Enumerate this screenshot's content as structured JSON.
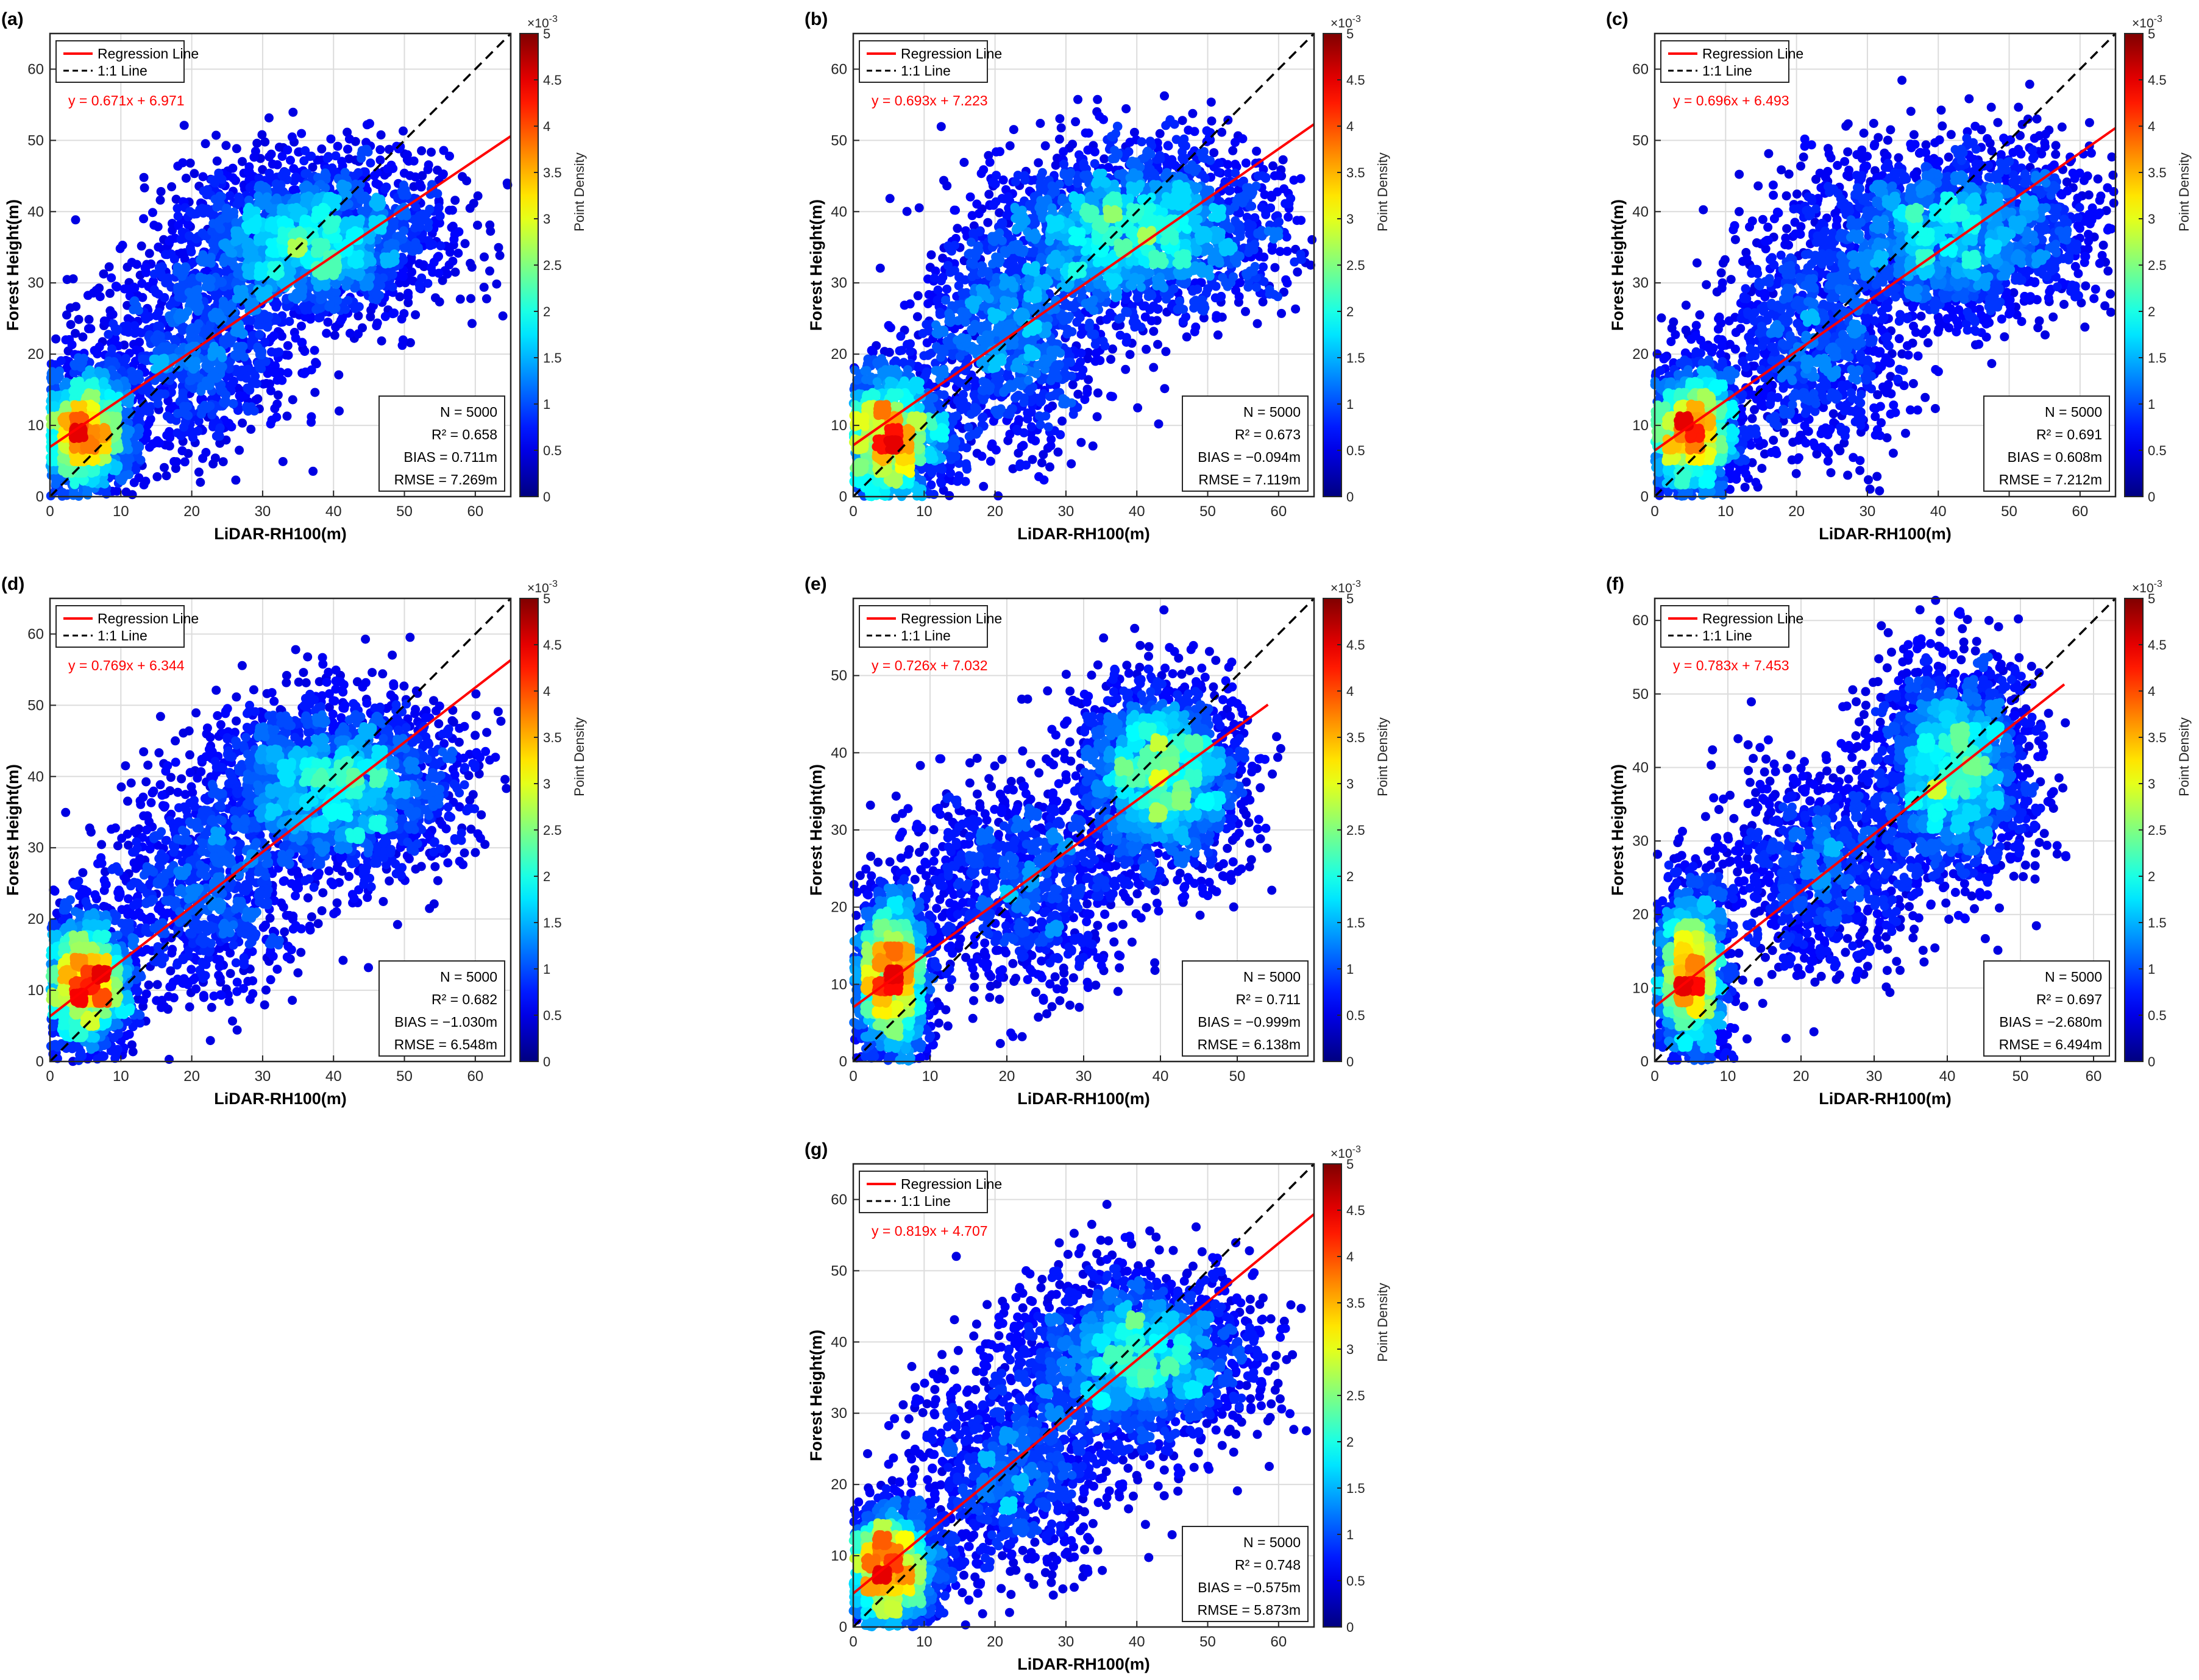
{
  "figure": {
    "shared": {
      "xlabel": "LiDAR-RH100(m)",
      "ylabel": "Forest Height(m)",
      "colorbar_label": "Point Density",
      "colorbar_exponent_base": "×10",
      "colorbar_exponent_power": "-3",
      "colorbar_range": [
        0,
        5
      ],
      "colorbar_ticks": [
        "0",
        "0.5",
        "1",
        "1.5",
        "2",
        "2.5",
        "3",
        "3.5",
        "4",
        "4.5",
        "5"
      ],
      "colormap": "jet",
      "legend": [
        "Regression Line",
        "1:1 Line"
      ],
      "regression_color": "#ff0000",
      "identity_color": "#000000",
      "grid": true
    }
  },
  "chart_data": [
    {
      "panel": "(a)",
      "type": "scatter",
      "colored_by": "point density",
      "xlabel": "LiDAR-RH100(m)",
      "ylabel": "Forest Height(m)",
      "xlim": [
        0,
        65
      ],
      "ylim": [
        0,
        65
      ],
      "xticks": [
        0,
        10,
        20,
        30,
        40,
        50,
        60
      ],
      "yticks": [
        0,
        10,
        20,
        30,
        40,
        50,
        60
      ],
      "regression": {
        "slope": 0.671,
        "intercept": 6.971,
        "x_end": 65,
        "label": "y = 0.671x + 6.971"
      },
      "identity_line": true,
      "clusters": [
        {
          "x": 5,
          "y": 9,
          "sx": 3.5,
          "sy": 4.5,
          "n": 1700
        },
        {
          "x": 37,
          "y": 36,
          "sx": 9,
          "sy": 5.5,
          "n": 2300
        },
        {
          "x": 20,
          "y": 20,
          "sx": 7,
          "sy": 7,
          "n": 1000
        }
      ],
      "stats": {
        "n": "N = 5000",
        "r2": "R² = 0.658",
        "bias": "BIAS = 0.711m",
        "rmse": "RMSE = 7.269m"
      }
    },
    {
      "panel": "(b)",
      "type": "scatter",
      "colored_by": "point density",
      "xlabel": "LiDAR-RH100(m)",
      "ylabel": "Forest Height(m)",
      "xlim": [
        0,
        65
      ],
      "ylim": [
        0,
        65
      ],
      "xticks": [
        0,
        10,
        20,
        30,
        40,
        50,
        60
      ],
      "yticks": [
        0,
        10,
        20,
        30,
        40,
        50,
        60
      ],
      "regression": {
        "slope": 0.693,
        "intercept": 7.223,
        "x_end": 65,
        "label": "y = 0.693x + 7.223"
      },
      "identity_line": true,
      "clusters": [
        {
          "x": 5,
          "y": 8,
          "sx": 4,
          "sy": 5,
          "n": 1600
        },
        {
          "x": 40,
          "y": 37,
          "sx": 10,
          "sy": 6,
          "n": 2300
        },
        {
          "x": 22,
          "y": 22,
          "sx": 7,
          "sy": 8,
          "n": 1100
        }
      ],
      "stats": {
        "n": "N = 5000",
        "r2": "R² = 0.673",
        "bias": "BIAS = −0.094m",
        "rmse": "RMSE = 7.119m"
      }
    },
    {
      "panel": "(c)",
      "type": "scatter",
      "colored_by": "point density",
      "xlabel": "LiDAR-RH100(m)",
      "ylabel": "Forest Height(m)",
      "xlim": [
        0,
        65
      ],
      "ylim": [
        0,
        65
      ],
      "xticks": [
        0,
        10,
        20,
        30,
        40,
        50,
        60
      ],
      "yticks": [
        0,
        10,
        20,
        30,
        40,
        50,
        60
      ],
      "regression": {
        "slope": 0.696,
        "intercept": 6.493,
        "x_end": 65,
        "label": "y = 0.696x + 6.493"
      },
      "identity_line": true,
      "clusters": [
        {
          "x": 5,
          "y": 9,
          "sx": 3.5,
          "sy": 5,
          "n": 1700
        },
        {
          "x": 42,
          "y": 37,
          "sx": 10,
          "sy": 6,
          "n": 2300
        },
        {
          "x": 22,
          "y": 21,
          "sx": 7,
          "sy": 8,
          "n": 1000
        }
      ],
      "stats": {
        "n": "N = 5000",
        "r2": "R² = 0.691",
        "bias": "BIAS = 0.608m",
        "rmse": "RMSE = 7.212m"
      }
    },
    {
      "panel": "(d)",
      "type": "scatter",
      "colored_by": "point density",
      "xlabel": "LiDAR-RH100(m)",
      "ylabel": "Forest Height(m)",
      "xlim": [
        0,
        65
      ],
      "ylim": [
        0,
        65
      ],
      "xticks": [
        0,
        10,
        20,
        30,
        40,
        50,
        60
      ],
      "yticks": [
        0,
        10,
        20,
        30,
        40,
        50,
        60
      ],
      "regression": {
        "slope": 0.769,
        "intercept": 6.344,
        "x_end": 65,
        "label": "y = 0.769x + 6.344"
      },
      "identity_line": true,
      "clusters": [
        {
          "x": 5,
          "y": 11,
          "sx": 3.5,
          "sy": 5,
          "n": 1800
        },
        {
          "x": 40,
          "y": 39,
          "sx": 9,
          "sy": 6,
          "n": 2300
        },
        {
          "x": 22,
          "y": 24,
          "sx": 7,
          "sy": 7,
          "n": 900
        }
      ],
      "stats": {
        "n": "N = 5000",
        "r2": "R² = 0.682",
        "bias": "BIAS = −1.030m",
        "rmse": "RMSE = 6.548m"
      }
    },
    {
      "panel": "(e)",
      "type": "scatter",
      "colored_by": "point density",
      "xlabel": "LiDAR-RH100(m)",
      "ylabel": "Forest Height(m)",
      "xlim": [
        0,
        60
      ],
      "ylim": [
        0,
        60
      ],
      "xticks": [
        0,
        10,
        20,
        30,
        40,
        50
      ],
      "yticks": [
        0,
        10,
        20,
        30,
        40,
        50
      ],
      "regression": {
        "slope": 0.726,
        "intercept": 7.032,
        "x_end": 54,
        "label": "y = 0.726x + 7.032"
      },
      "identity_line": true,
      "clusters": [
        {
          "x": 5,
          "y": 11,
          "sx": 2.5,
          "sy": 5.5,
          "n": 1800
        },
        {
          "x": 40,
          "y": 37,
          "sx": 5,
          "sy": 6,
          "n": 2200
        },
        {
          "x": 22,
          "y": 23,
          "sx": 7,
          "sy": 7,
          "n": 1000
        }
      ],
      "stats": {
        "n": "N = 5000",
        "r2": "R² = 0.711",
        "bias": "BIAS = −0.999m",
        "rmse": "RMSE = 6.138m"
      }
    },
    {
      "panel": "(f)",
      "type": "scatter",
      "colored_by": "point density",
      "xlabel": "LiDAR-RH100(m)",
      "ylabel": "Forest Height(m)",
      "xlim": [
        0,
        63
      ],
      "ylim": [
        0,
        63
      ],
      "xticks": [
        0,
        10,
        20,
        30,
        40,
        50,
        60
      ],
      "yticks": [
        0,
        10,
        20,
        30,
        40,
        50,
        60
      ],
      "regression": {
        "slope": 0.783,
        "intercept": 7.453,
        "x_end": 56,
        "label": "y = 0.783x + 7.453"
      },
      "identity_line": true,
      "clusters": [
        {
          "x": 5,
          "y": 12,
          "sx": 2.5,
          "sy": 6,
          "n": 1800
        },
        {
          "x": 41,
          "y": 40,
          "sx": 5,
          "sy": 7,
          "n": 2200
        },
        {
          "x": 23,
          "y": 26,
          "sx": 7,
          "sy": 7,
          "n": 1000
        }
      ],
      "stats": {
        "n": "N = 5000",
        "r2": "R² = 0.697",
        "bias": "BIAS = −2.680m",
        "rmse": "RMSE = 6.494m"
      }
    },
    {
      "panel": "(g)",
      "type": "scatter",
      "colored_by": "point density",
      "xlabel": "LiDAR-RH100(m)",
      "ylabel": "Forest Height(m)",
      "xlim": [
        0,
        65
      ],
      "ylim": [
        0,
        65
      ],
      "xticks": [
        0,
        10,
        20,
        30,
        40,
        50,
        60
      ],
      "yticks": [
        0,
        10,
        20,
        30,
        40,
        50,
        60
      ],
      "regression": {
        "slope": 0.819,
        "intercept": 4.707,
        "x_end": 65,
        "label": "y = 0.819x + 4.707"
      },
      "identity_line": true,
      "clusters": [
        {
          "x": 5,
          "y": 8,
          "sx": 3.5,
          "sy": 4.5,
          "n": 1800
        },
        {
          "x": 40,
          "y": 38,
          "sx": 8,
          "sy": 6,
          "n": 2200
        },
        {
          "x": 22,
          "y": 22,
          "sx": 7,
          "sy": 7,
          "n": 1000
        }
      ],
      "stats": {
        "n": "N = 5000",
        "r2": "R² = 0.748",
        "bias": "BIAS = −0.575m",
        "rmse": "RMSE = 5.873m"
      }
    }
  ]
}
